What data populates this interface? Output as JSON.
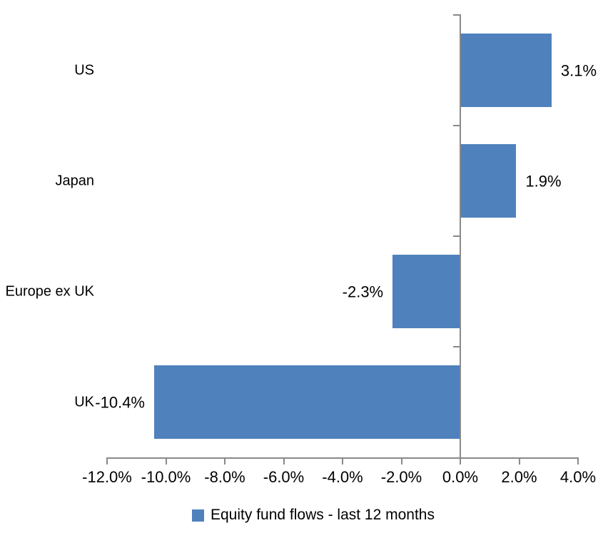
{
  "chart_data": {
    "type": "bar",
    "orientation": "horizontal",
    "title": "",
    "categories": [
      "US",
      "Japan",
      "Europe ex UK",
      "UK"
    ],
    "values": [
      3.1,
      1.9,
      -2.3,
      -10.4
    ],
    "value_labels": [
      "3.1%",
      "1.9%",
      "-2.3%",
      "-10.4%"
    ],
    "series": [
      {
        "name": "Equity fund flows - last 12 months",
        "values": [
          3.1,
          1.9,
          -2.3,
          -10.4
        ]
      }
    ],
    "x_axis": {
      "min": -12,
      "max": 4,
      "tick_step": 2,
      "tick_labels": [
        "-12.0%",
        "-10.0%",
        "-8.0%",
        "-6.0%",
        "-4.0%",
        "-2.0%",
        "0.0%",
        "2.0%",
        "4.0%"
      ],
      "format": "percent"
    },
    "y_axis": {
      "zero_line": true
    },
    "grid": false,
    "legend": {
      "position": "bottom-center",
      "entries": [
        "Equity fund flows - last 12 months"
      ]
    },
    "colors": {
      "bar": "#4F81BD",
      "axis": "#898989",
      "text": "#000000",
      "background": "#FFFFFF"
    }
  }
}
